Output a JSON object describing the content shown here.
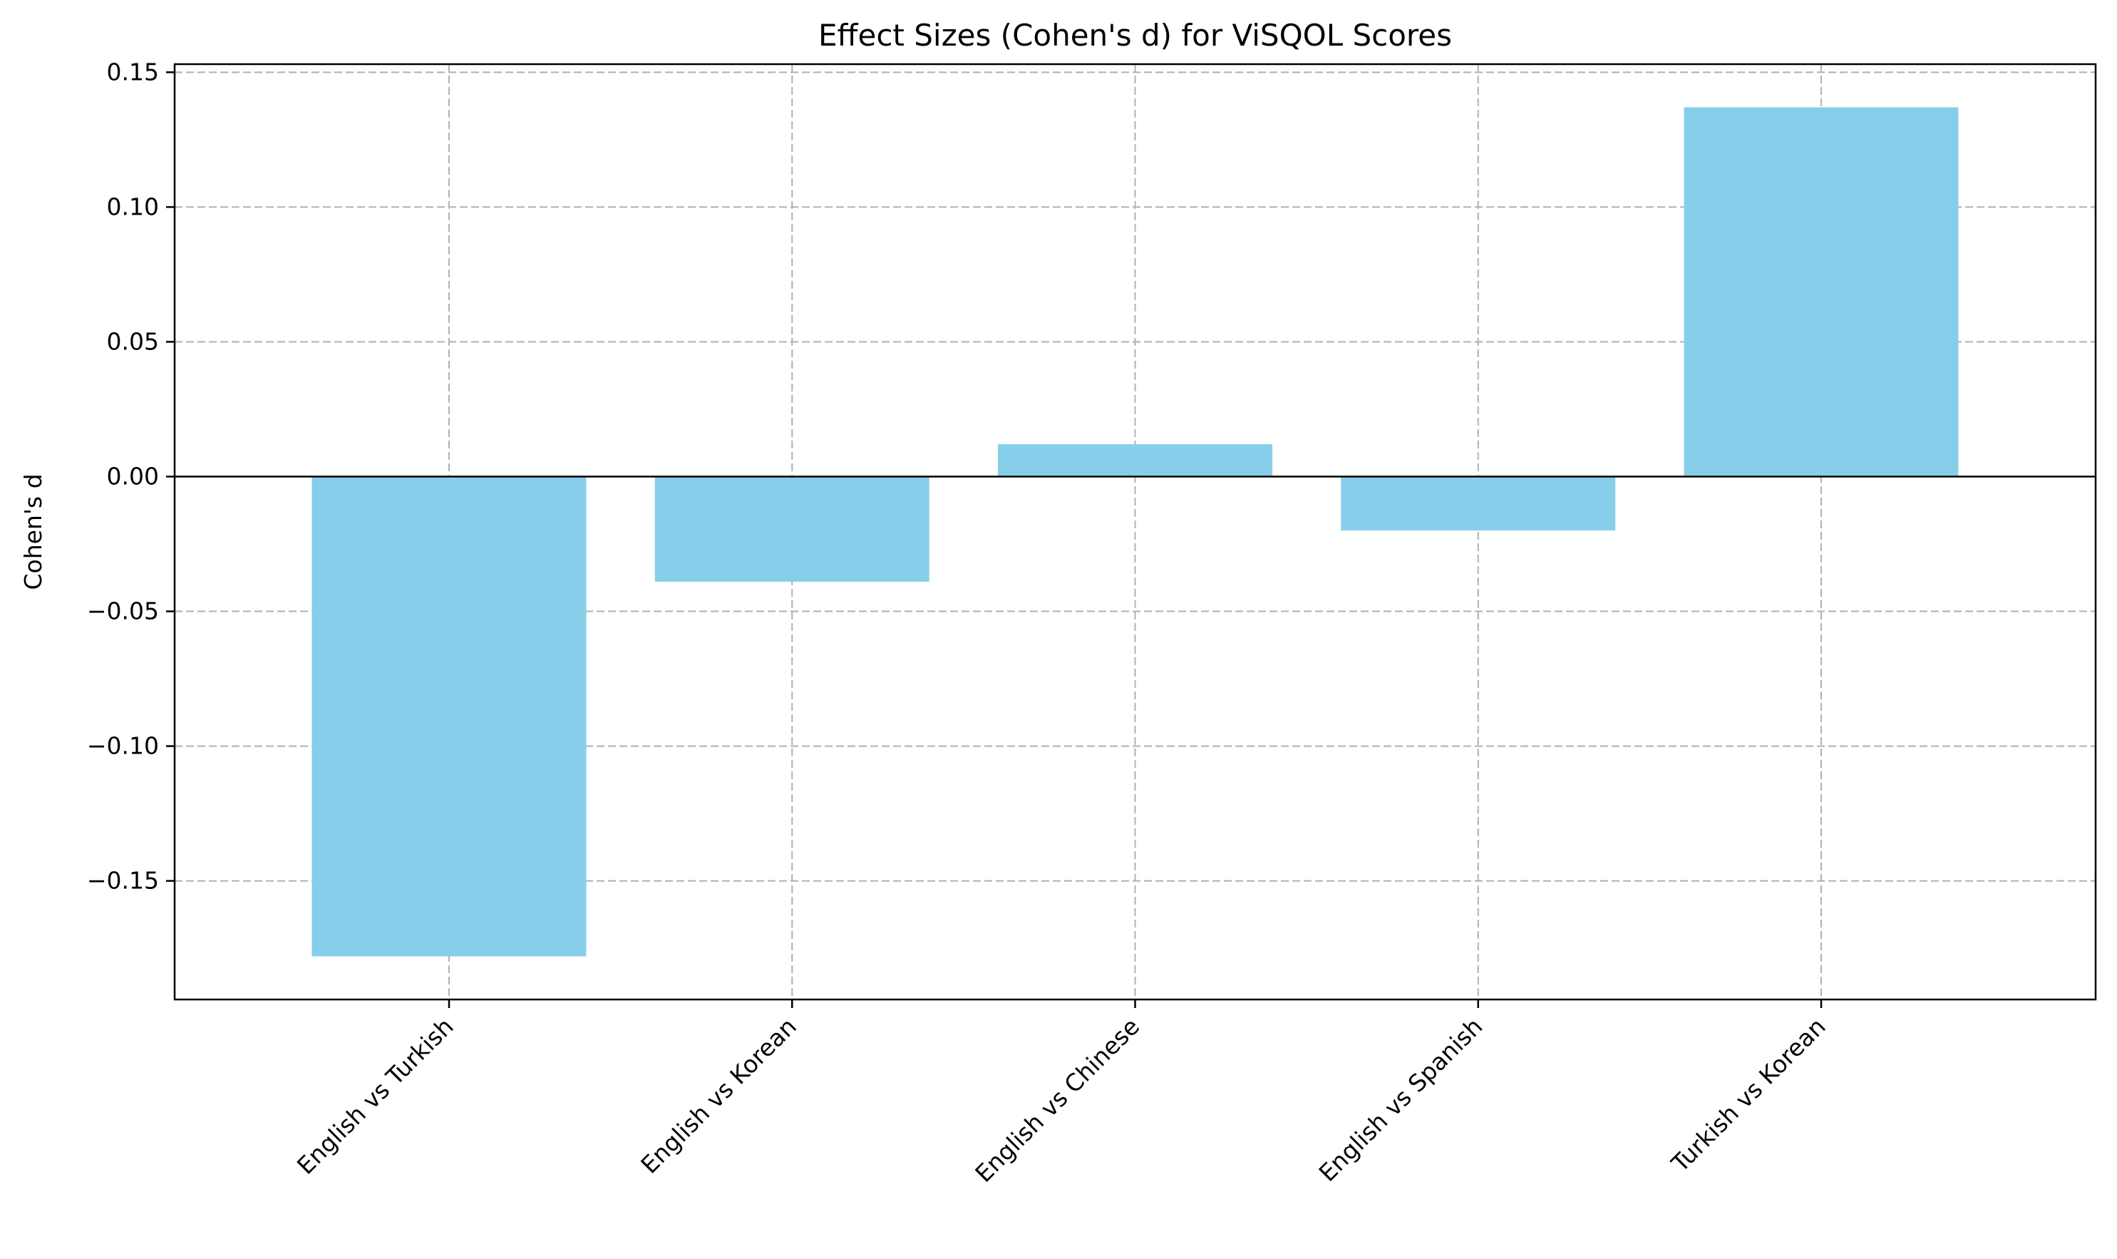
{
  "chart_data": {
    "type": "bar",
    "title": "Effect Sizes (Cohen's d) for ViSQOL Scores",
    "xlabel": "",
    "ylabel": "Cohen's d",
    "categories": [
      "English vs Turkish",
      "English vs Korean",
      "English vs Chinese",
      "English vs Spanish",
      "Turkish vs Korean"
    ],
    "values": [
      -0.178,
      -0.039,
      0.012,
      -0.02,
      0.137
    ],
    "ylim": [
      -0.194,
      0.153
    ],
    "yticks": [
      -0.15,
      -0.1,
      -0.05,
      0.0,
      0.05,
      0.1,
      0.15
    ],
    "ytick_labels": [
      "−0.15",
      "−0.10",
      "−0.05",
      "0.00",
      "0.05",
      "0.10",
      "0.15"
    ],
    "grid": true,
    "zero_line": true,
    "bar_color": "#87ceeb",
    "legend": "none"
  }
}
